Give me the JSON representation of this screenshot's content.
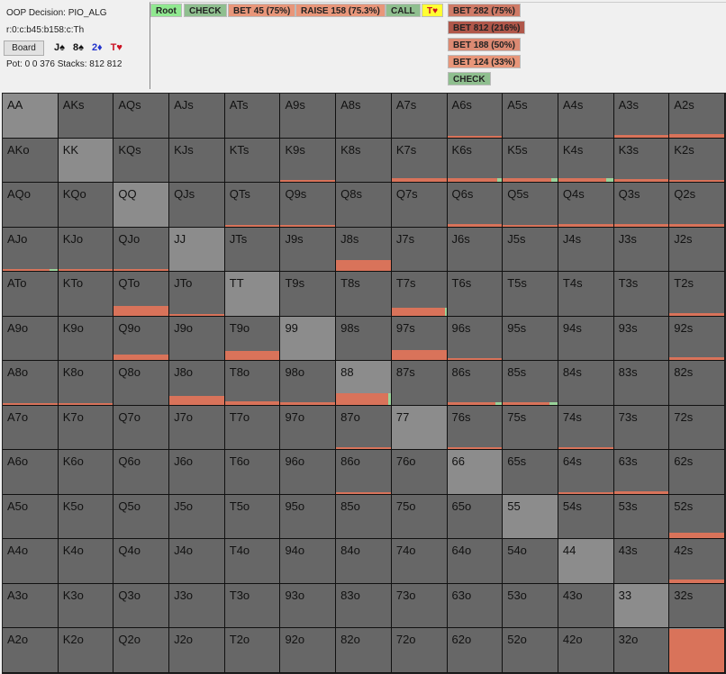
{
  "info": {
    "decision": "OOP Decision:  PIO_ALG",
    "line": "r:0:c:b45:b158:c:Th",
    "board_button": "Board",
    "pot": "Pot: 0 0 376 Stacks: 812 812"
  },
  "board": [
    {
      "card": "J♠",
      "color": "#111111"
    },
    {
      "card": "8♠",
      "color": "#111111"
    },
    {
      "card": "2♦",
      "color": "#2233cc"
    },
    {
      "card": "T♥",
      "color": "#cc1122"
    }
  ],
  "tree": {
    "path": [
      {
        "label": "Root",
        "color": "#90e890"
      },
      {
        "label": "CHECK",
        "color": "#8fbf8f"
      },
      {
        "label": "BET 45 (75%)",
        "color": "#e8967a"
      },
      {
        "label": "RAISE 158 (75.3%)",
        "color": "#e8967a"
      },
      {
        "label": "CALL",
        "color": "#8fbf8f"
      },
      {
        "label": "T♥",
        "color": "#ffff33"
      }
    ],
    "options": [
      {
        "label": "BET 282 (75%)",
        "color": "#cf7a66"
      },
      {
        "label": "BET 812 (216%)",
        "color": "#b0574a"
      },
      {
        "label": "BET 188 (50%)",
        "color": "#dc8a73"
      },
      {
        "label": "BET 124 (33%)",
        "color": "#e8967a"
      },
      {
        "label": "CHECK",
        "color": "#8fbf8f"
      }
    ]
  },
  "colors": {
    "cell": "#676767",
    "pair": "#8c8c8c",
    "bet": "#d9735a",
    "check": "#9ad39a"
  },
  "ranks": [
    "A",
    "K",
    "Q",
    "J",
    "T",
    "9",
    "8",
    "7",
    "6",
    "5",
    "4",
    "3",
    "2"
  ],
  "weights": {
    "A6s": 0.03,
    "A3s": 0.05,
    "A2s": 0.08,
    "K9s": 0.03,
    "K7s": 0.08,
    "K6s": 0.08,
    "K5s": 0.08,
    "K4s": 0.08,
    "K3s": 0.06,
    "K2s": 0.03,
    "QTs": 0.04,
    "Q9s": 0.04,
    "Q6s": 0.05,
    "Q5s": 0.04,
    "Q4s": 0.05,
    "Q3s": 0.06,
    "Q2s": 0.06,
    "J8s": 0.25,
    "T7s": 0.18,
    "T2s": 0.05,
    "AJo": 0.05,
    "KJo": 0.03,
    "QJo": 0.04,
    "QTo": 0.22,
    "JTo": 0.03,
    "Q9o": 0.12,
    "T9o": 0.2,
    "97s": 0.22,
    "96s": 0.03,
    "92s": 0.06,
    "88": 0.25,
    "J8o": 0.2,
    "T8o": 0.08,
    "98o": 0.05,
    "86s": 0.06,
    "85s": 0.06,
    "87o": 0.04,
    "A8o": 0.03,
    "K8o": 0.02,
    "76s": 0.02,
    "74s": 0.02,
    "64s": 0.03,
    "63s": 0.05,
    "86o": 0.03,
    "52s": 0.12,
    "42s": 0.08,
    "22": 0.97
  },
  "check_share": {
    "K6s": 0.08,
    "K5s": 0.12,
    "K4s": 0.12,
    "86s": 0.12,
    "85s": 0.15,
    "AJo": 0.15,
    "88": 0.05,
    "T7s": 0.03
  }
}
